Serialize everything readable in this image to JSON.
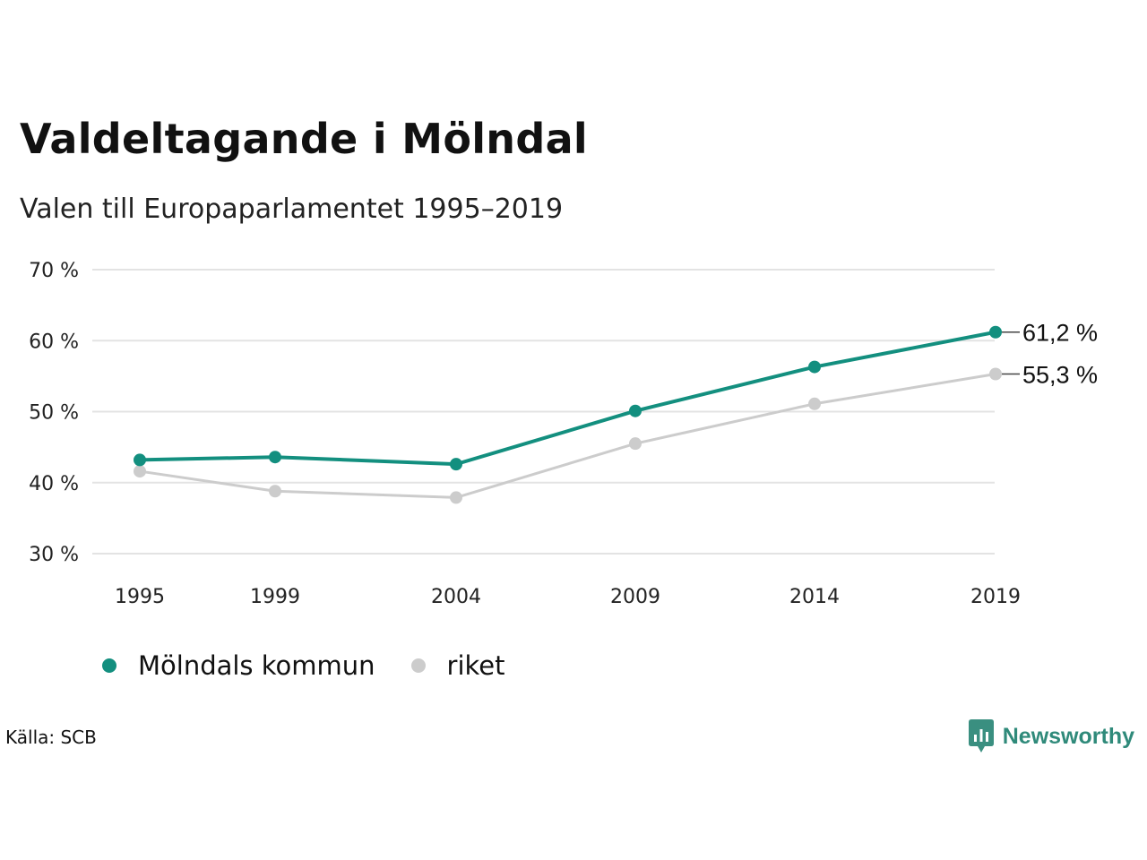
{
  "header": {
    "title": "Valdeltagande i Mölndal",
    "subtitle": "Valen till Europaparlamentet 1995–2019"
  },
  "chart_data": {
    "type": "line",
    "x": [
      "1995",
      "1999",
      "2004",
      "2009",
      "2014",
      "2019"
    ],
    "series": [
      {
        "name": "Mölndals kommun",
        "color": "#138f7f",
        "values": [
          43.2,
          43.6,
          42.6,
          50.1,
          56.3,
          61.2
        ],
        "end_label": "61,2 %"
      },
      {
        "name": "riket",
        "color": "#cccccc",
        "values": [
          41.6,
          38.8,
          37.9,
          45.5,
          51.1,
          55.3
        ],
        "end_label": "55,3 %"
      }
    ],
    "ylim": [
      30,
      70
    ],
    "yticks": [
      70,
      60,
      50,
      40,
      30
    ],
    "ytick_labels": [
      "70 %",
      "60 %",
      "50 %",
      "40 %",
      "30 %"
    ],
    "xtick_labels": [
      "1995",
      "1999",
      "2004",
      "2009",
      "2014",
      "2019"
    ],
    "grid": true,
    "legend_position": "bottom-left"
  },
  "legend": {
    "items": [
      {
        "label": "Mölndals kommun",
        "color": "#138f7f"
      },
      {
        "label": "riket",
        "color": "#cccccc"
      }
    ]
  },
  "footer": {
    "source": "Källa: SCB",
    "brand": "Newsworthy",
    "brand_icon": "newsworthy-logo-icon"
  }
}
